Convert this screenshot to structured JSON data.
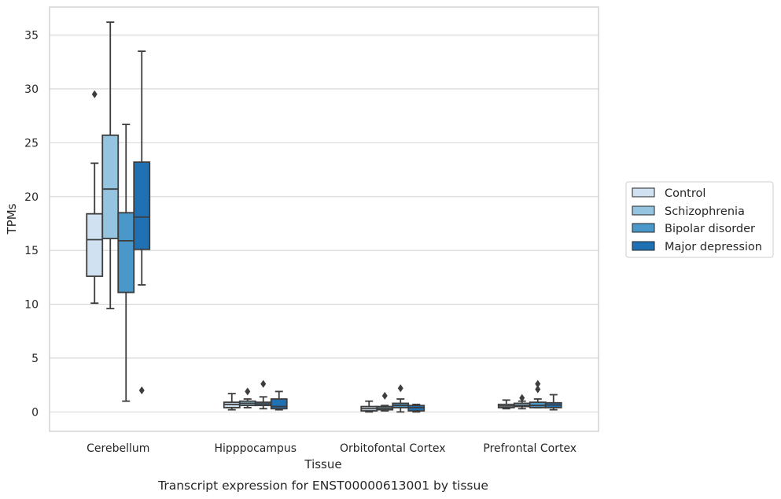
{
  "chart_data": {
    "type": "box",
    "title": "",
    "caption": "Transcript expression for ENST00000613001 by tissue",
    "xlabel": "Tissue",
    "ylabel": "TPMs",
    "ylim": [
      -1.8,
      37.6
    ],
    "yticks": [
      0,
      5,
      10,
      15,
      20,
      25,
      30,
      35
    ],
    "grid": "horizontal",
    "legend_position": "right",
    "categories": [
      "Cerebellum",
      "Hipppocampus",
      "Orbitofontal Cortex",
      "Prefrontal Cortex"
    ],
    "series": [
      {
        "name": "Control",
        "color": "#d0e1f2",
        "boxes": [
          {
            "whisker_low": 10.1,
            "q1": 12.6,
            "median": 16.0,
            "q3": 18.4,
            "whisker_high": 23.1,
            "outliers": [
              29.5
            ]
          },
          {
            "whisker_low": 0.2,
            "q1": 0.4,
            "median": 0.7,
            "q3": 0.9,
            "whisker_high": 1.7,
            "outliers": []
          },
          {
            "whisker_low": 0.0,
            "q1": 0.1,
            "median": 0.3,
            "q3": 0.5,
            "whisker_high": 1.0,
            "outliers": []
          },
          {
            "whisker_low": 0.3,
            "q1": 0.4,
            "median": 0.55,
            "q3": 0.7,
            "whisker_high": 1.1,
            "outliers": []
          }
        ]
      },
      {
        "name": "Schizophrenia",
        "color": "#94c4df",
        "boxes": [
          {
            "whisker_low": 9.6,
            "q1": 16.1,
            "median": 20.7,
            "q3": 25.7,
            "whisker_high": 36.2,
            "outliers": []
          },
          {
            "whisker_low": 0.4,
            "q1": 0.6,
            "median": 0.8,
            "q3": 1.0,
            "whisker_high": 1.2,
            "outliers": [
              1.9
            ]
          },
          {
            "whisker_low": 0.1,
            "q1": 0.2,
            "median": 0.35,
            "q3": 0.5,
            "whisker_high": 0.6,
            "outliers": [
              1.5
            ]
          },
          {
            "whisker_low": 0.3,
            "q1": 0.5,
            "median": 0.6,
            "q3": 0.8,
            "whisker_high": 1.0,
            "outliers": [
              1.3
            ]
          }
        ]
      },
      {
        "name": "Bipolar disorder",
        "color": "#4a98c9",
        "boxes": [
          {
            "whisker_low": 1.0,
            "q1": 11.1,
            "median": 15.9,
            "q3": 18.5,
            "whisker_high": 26.7,
            "outliers": []
          },
          {
            "whisker_low": 0.3,
            "q1": 0.6,
            "median": 0.75,
            "q3": 0.9,
            "whisker_high": 1.4,
            "outliers": [
              2.6
            ]
          },
          {
            "whisker_low": 0.0,
            "q1": 0.4,
            "median": 0.6,
            "q3": 0.8,
            "whisker_high": 1.2,
            "outliers": [
              2.2
            ]
          },
          {
            "whisker_low": 0.4,
            "q1": 0.4,
            "median": 0.6,
            "q3": 0.9,
            "whisker_high": 1.2,
            "outliers": [
              2.1,
              2.6
            ]
          }
        ]
      },
      {
        "name": "Major depression",
        "color": "#2070b4",
        "boxes": [
          {
            "whisker_low": 11.8,
            "q1": 15.1,
            "median": 18.1,
            "q3": 23.2,
            "whisker_high": 33.5,
            "outliers": [
              2.0
            ]
          },
          {
            "whisker_low": 0.2,
            "q1": 0.3,
            "median": 0.5,
            "q3": 1.2,
            "whisker_high": 1.9,
            "outliers": []
          },
          {
            "whisker_low": 0.0,
            "q1": 0.1,
            "median": 0.4,
            "q3": 0.6,
            "whisker_high": 0.7,
            "outliers": []
          },
          {
            "whisker_low": 0.2,
            "q1": 0.4,
            "median": 0.65,
            "q3": 0.85,
            "whisker_high": 1.6,
            "outliers": []
          }
        ]
      }
    ]
  }
}
